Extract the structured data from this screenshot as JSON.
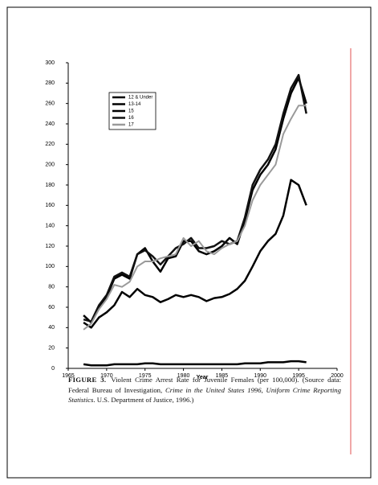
{
  "chart_data": {
    "type": "line",
    "x_label": "Year",
    "x": [
      1967,
      1968,
      1969,
      1970,
      1971,
      1972,
      1973,
      1974,
      1975,
      1976,
      1977,
      1978,
      1979,
      1980,
      1981,
      1982,
      1983,
      1984,
      1985,
      1986,
      1987,
      1988,
      1989,
      1990,
      1991,
      1992,
      1993,
      1994,
      1995,
      1996
    ],
    "series": [
      {
        "name": "12 & Under",
        "color": "#000000",
        "values": [
          4,
          3,
          3,
          3,
          4,
          4,
          4,
          4,
          5,
          5,
          4,
          4,
          4,
          4,
          4,
          4,
          4,
          4,
          4,
          4,
          4,
          5,
          5,
          5,
          6,
          6,
          6,
          7,
          7,
          6
        ]
      },
      {
        "name": "13-14",
        "color": "#000000",
        "values": [
          45,
          40,
          50,
          55,
          62,
          75,
          70,
          78,
          72,
          70,
          65,
          68,
          72,
          70,
          72,
          70,
          66,
          69,
          70,
          73,
          78,
          86,
          100,
          115,
          125,
          132,
          150,
          185,
          180,
          160
        ]
      },
      {
        "name": "15",
        "color": "#000000",
        "values": [
          52,
          45,
          60,
          70,
          88,
          92,
          88,
          112,
          118,
          105,
          95,
          108,
          110,
          125,
          125,
          115,
          112,
          115,
          120,
          128,
          122,
          145,
          175,
          190,
          200,
          215,
          245,
          270,
          285,
          260
        ]
      },
      {
        "name": "16",
        "color": "#111111",
        "values": [
          48,
          46,
          62,
          72,
          90,
          94,
          90,
          112,
          116,
          110,
          102,
          110,
          118,
          122,
          128,
          118,
          118,
          120,
          125,
          122,
          125,
          148,
          180,
          195,
          205,
          220,
          250,
          275,
          288,
          250
        ]
      },
      {
        "name": "17",
        "color": "#9a9a9a",
        "values": [
          38,
          44,
          58,
          68,
          82,
          80,
          85,
          100,
          105,
          105,
          108,
          110,
          112,
          128,
          120,
          125,
          115,
          112,
          118,
          122,
          125,
          140,
          165,
          180,
          190,
          200,
          230,
          245,
          258,
          258
        ]
      }
    ],
    "xlim": [
      1965,
      2000
    ],
    "xticks": [
      1965,
      1970,
      1975,
      1980,
      1985,
      1990,
      1995,
      2000
    ],
    "ylim": [
      0,
      300
    ],
    "yticks": [
      0,
      20,
      40,
      60,
      80,
      100,
      120,
      140,
      160,
      180,
      200,
      220,
      240,
      260,
      280,
      300
    ],
    "grid": false
  },
  "caption": {
    "label": "FIGURE 3.",
    "text": [
      "Violent Crime Arrest Rate for Juvenile Females (per 100,000). (Source data: Federal Bureau of Investigation, ",
      "Crime in the United States 1996, Uniform Crime Reporting Statistics",
      ". U.S. Department of Justice, 1996.)"
    ]
  }
}
